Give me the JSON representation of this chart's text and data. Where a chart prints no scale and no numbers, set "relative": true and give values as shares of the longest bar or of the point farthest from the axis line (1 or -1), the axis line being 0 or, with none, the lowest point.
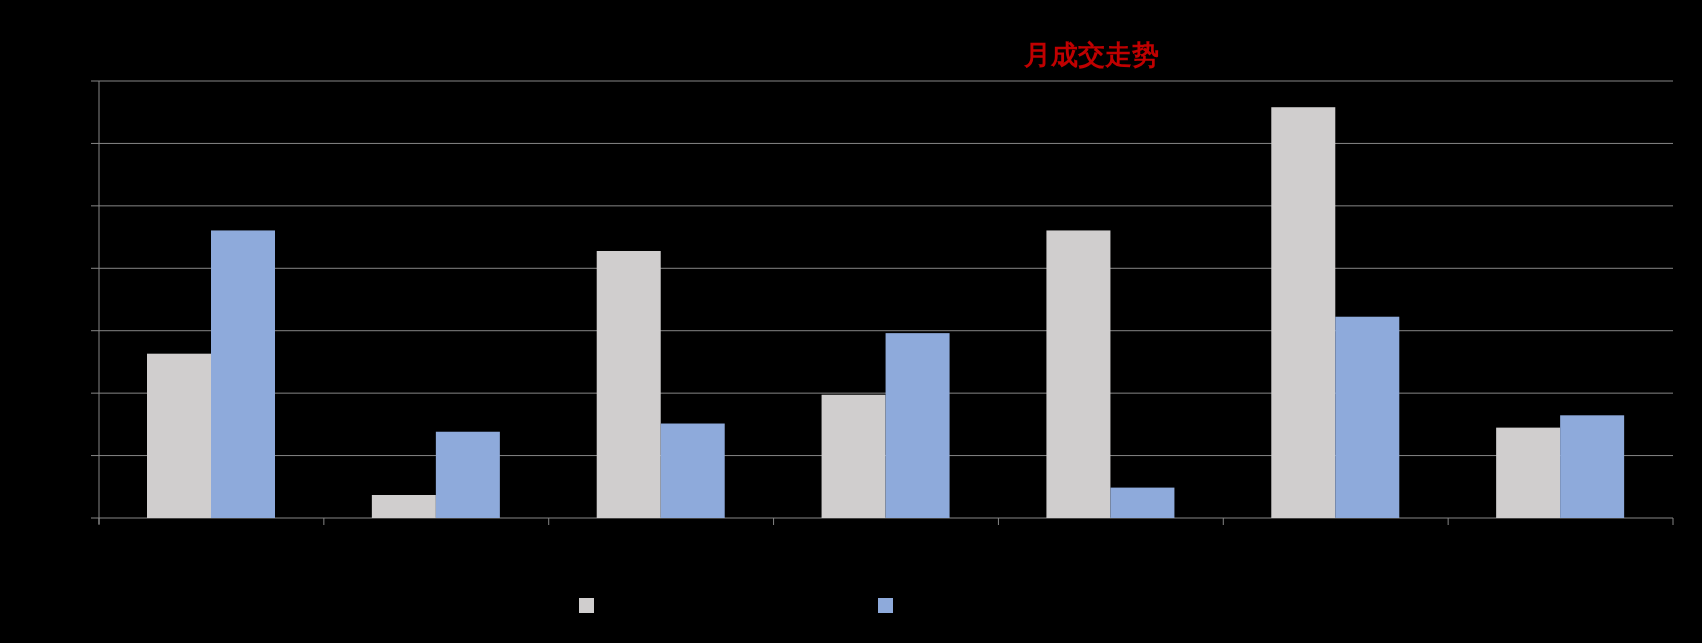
{
  "chart_data": {
    "type": "bar",
    "title": "月成交走势",
    "relative": true,
    "categories": [
      null,
      null,
      null,
      null,
      null,
      null,
      null
    ],
    "series": [
      {
        "color": "#d0cece",
        "values": [
          0.4,
          0.056,
          0.65,
          0.3,
          0.7,
          1.0,
          0.22
        ]
      },
      {
        "color": "#8eaadb",
        "values": [
          0.7,
          0.21,
          0.23,
          0.45,
          0.074,
          0.49,
          0.25
        ]
      }
    ],
    "grid": "y"
  }
}
